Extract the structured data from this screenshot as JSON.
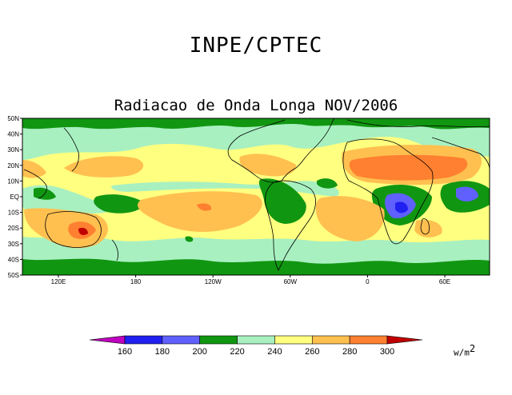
{
  "header": {
    "institution": "INPE/CPTEC"
  },
  "map": {
    "title": "Radiacao de Onda Longa NOV/2006",
    "variable": "Outgoing longwave radiation",
    "lat_labels": [
      "50N",
      "40N",
      "30N",
      "20N",
      "10N",
      "EQ",
      "10S",
      "20S",
      "30S",
      "40S",
      "50S"
    ],
    "lon_labels": [
      "120E",
      "180",
      "120W",
      "60W",
      "0",
      "60E"
    ]
  },
  "colorbar": {
    "levels": [
      "160",
      "180",
      "200",
      "220",
      "240",
      "260",
      "280",
      "300"
    ],
    "colors": [
      "#c000c0",
      "#2020f0",
      "#6060ff",
      "#119611",
      "#a8f0c0",
      "#ffff80",
      "#ffc050",
      "#ff8030",
      "#c00000"
    ],
    "units": "w/m",
    "units_power": "2"
  }
}
